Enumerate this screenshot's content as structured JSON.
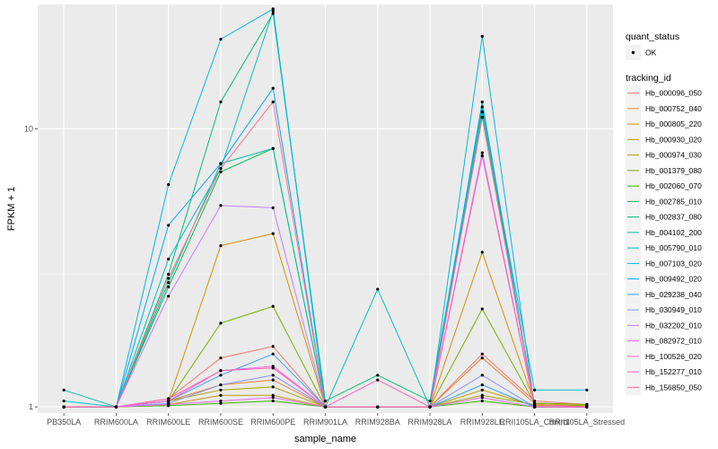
{
  "chart_data": {
    "type": "line",
    "xlabel": "sample_name",
    "ylabel": "FPKM + 1",
    "y_scale": "log10",
    "ylim": [
      0.95,
      28
    ],
    "y_ticks": [
      {
        "value": 1,
        "label": "1"
      },
      {
        "value": 10,
        "label": "10"
      }
    ],
    "grid": true,
    "legend_position": "right",
    "categories": [
      "PB350LA",
      "RRIM600LA",
      "RRIM600LE",
      "RRIM600SE",
      "RRIM600PE",
      "RRIM901LA",
      "RRIM928BA",
      "RRIM928LA",
      "RRIM928LE",
      "RRII105LA_Control",
      "RRII105LA_Stressed"
    ],
    "category_labels": [
      "PB350LA",
      "RRIM600LA",
      "RRIM600LE",
      "RRIM600SE",
      "RRIM600PE",
      "RRIM901LA",
      "RRIM928BA",
      "RRIM928LA",
      "RRIM928LE",
      "RRII105LA_Control",
      "RRII105LA_Stressed"
    ],
    "point_legend": {
      "title": "quant_status",
      "entries": [
        "OK"
      ]
    },
    "legend_title": "tracking_id",
    "series": [
      {
        "name": "Hb_000096_050",
        "color": "#F8766D",
        "values": [
          1.0,
          1.0,
          1.07,
          1.5,
          1.65,
          1.0,
          1.0,
          1.0,
          1.55,
          1.05,
          1.02
        ]
      },
      {
        "name": "Hb_000752_040",
        "color": "#EA8331",
        "values": [
          1.0,
          1.0,
          1.05,
          1.2,
          1.25,
          1.0,
          1.0,
          1.0,
          1.5,
          1.03,
          1.02
        ]
      },
      {
        "name": "Hb_000805_220",
        "color": "#D89000",
        "values": [
          1.0,
          1.0,
          1.05,
          3.8,
          4.2,
          1.0,
          1.0,
          1.0,
          3.6,
          1.03,
          1.02
        ]
      },
      {
        "name": "Hb_000930_020",
        "color": "#C09B00",
        "values": [
          1.0,
          1.0,
          1.02,
          1.1,
          1.1,
          1.0,
          1.0,
          1.0,
          1.15,
          1.01,
          1.01
        ]
      },
      {
        "name": "Hb_000974_030",
        "color": "#A3A500",
        "values": [
          1.0,
          1.0,
          1.05,
          1.15,
          1.18,
          1.0,
          1.0,
          1.0,
          1.1,
          1.02,
          1.01
        ]
      },
      {
        "name": "Hb_001379_080",
        "color": "#7CAE00",
        "values": [
          1.0,
          1.0,
          1.05,
          2.0,
          2.3,
          1.0,
          1.0,
          1.0,
          2.25,
          1.03,
          1.02
        ]
      },
      {
        "name": "Hb_002060_070",
        "color": "#39B600",
        "values": [
          1.0,
          1.0,
          1.01,
          1.03,
          1.05,
          1.0,
          1.0,
          1.0,
          1.05,
          1.0,
          1.0
        ]
      },
      {
        "name": "Hb_002785_010",
        "color": "#00BB4E",
        "values": [
          1.0,
          1.0,
          2.7,
          7.0,
          8.5,
          1.0,
          1.0,
          1.0,
          11.5,
          1.0,
          1.0
        ]
      },
      {
        "name": "Hb_002837_080",
        "color": "#00BF7D",
        "values": [
          1.0,
          1.0,
          3.0,
          12.5,
          26.0,
          1.05,
          1.3,
          1.05,
          12.0,
          1.0,
          1.0
        ]
      },
      {
        "name": "Hb_004102_200",
        "color": "#00C1A3",
        "values": [
          1.15,
          1.0,
          2.8,
          7.5,
          8.5,
          1.0,
          1.0,
          1.0,
          11.0,
          1.0,
          1.0
        ]
      },
      {
        "name": "Hb_005790_010",
        "color": "#00BFC4",
        "values": [
          1.05,
          1.0,
          3.4,
          7.2,
          26.5,
          1.0,
          2.65,
          1.0,
          11.5,
          1.15,
          1.15
        ]
      },
      {
        "name": "Hb_007103_020",
        "color": "#00B8E7",
        "values": [
          1.0,
          1.0,
          6.3,
          21.0,
          27.0,
          1.0,
          1.0,
          1.0,
          21.5,
          1.0,
          1.0
        ]
      },
      {
        "name": "Hb_009492_020",
        "color": "#00A9FF",
        "values": [
          1.0,
          1.0,
          4.5,
          7.5,
          14.0,
          1.0,
          1.0,
          1.0,
          12.5,
          1.0,
          1.0
        ]
      },
      {
        "name": "Hb_029238_040",
        "color": "#35A2FF",
        "values": [
          1.0,
          1.0,
          1.05,
          1.3,
          1.55,
          1.0,
          1.0,
          1.0,
          1.2,
          1.0,
          1.0
        ]
      },
      {
        "name": "Hb_030949_010",
        "color": "#8494FF",
        "values": [
          1.0,
          1.0,
          1.03,
          1.2,
          1.3,
          1.0,
          1.0,
          1.0,
          1.3,
          1.0,
          1.0
        ]
      },
      {
        "name": "Hb_032202_010",
        "color": "#C77CFF",
        "values": [
          1.0,
          1.0,
          2.5,
          5.3,
          5.2,
          1.0,
          1.0,
          1.0,
          8.2,
          1.0,
          1.0
        ]
      },
      {
        "name": "Hb_082972_010",
        "color": "#E76BF3",
        "values": [
          1.0,
          1.0,
          1.02,
          1.05,
          1.08,
          1.0,
          1.0,
          1.0,
          1.08,
          1.0,
          1.0
        ]
      },
      {
        "name": "Hb_100526_020",
        "color": "#FA62DB",
        "values": [
          1.0,
          1.0,
          1.05,
          1.35,
          1.4,
          1.0,
          1.0,
          1.0,
          8.0,
          1.0,
          1.0
        ]
      },
      {
        "name": "Hb_152277_010",
        "color": "#FF62BC",
        "values": [
          1.0,
          1.0,
          1.07,
          1.35,
          1.38,
          1.0,
          1.25,
          1.0,
          8.0,
          1.0,
          1.0
        ]
      },
      {
        "name": "Hb_156850_050",
        "color": "#FF6C91",
        "values": [
          1.0,
          1.0,
          2.9,
          7.2,
          12.5,
          1.0,
          1.0,
          1.0,
          11.0,
          1.02,
          1.0
        ]
      }
    ]
  }
}
